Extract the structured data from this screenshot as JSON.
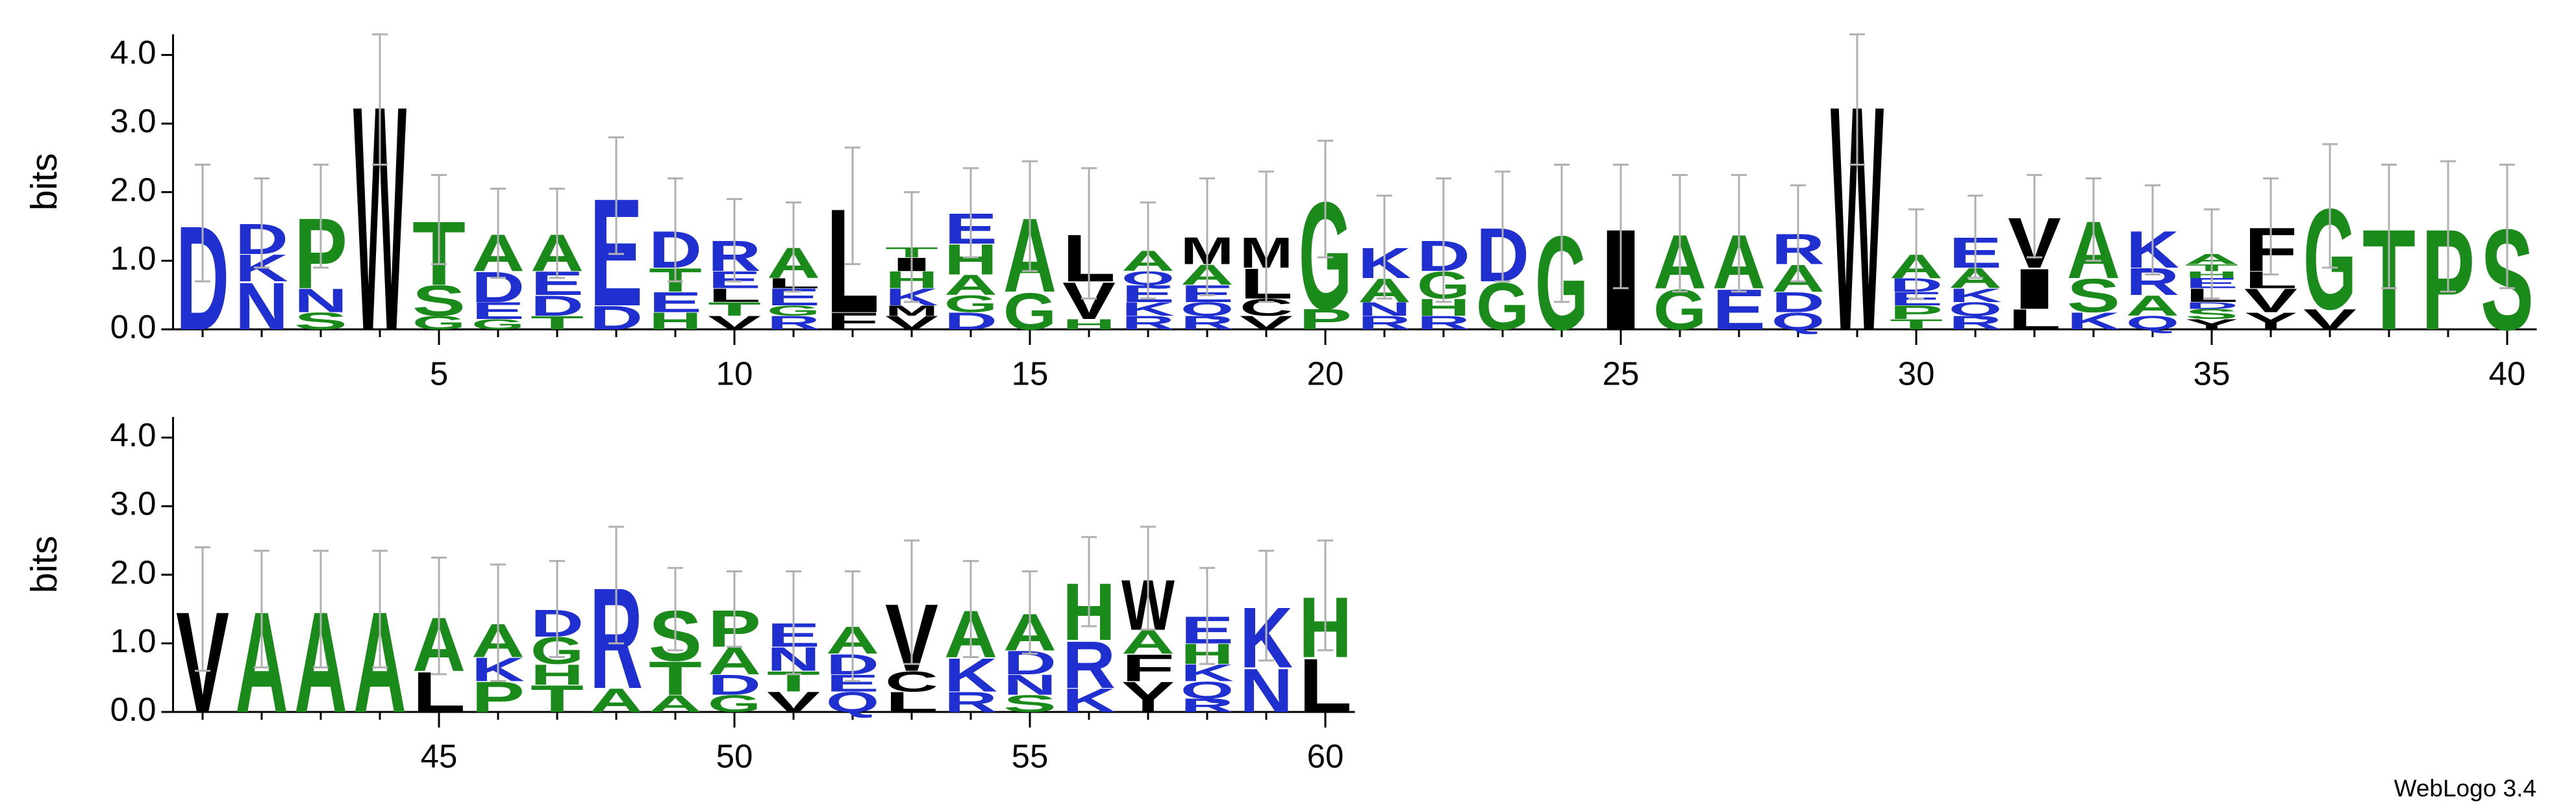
{
  "footer": "WebLogo 3.4",
  "letter_colors": {
    "A": "#1a8a1a",
    "G": "#1a8a1a",
    "S": "#1a8a1a",
    "T": "#1a8a1a",
    "P": "#1a8a1a",
    "H": "#1a8a1a",
    "D": "#1f2fd0",
    "E": "#1f2fd0",
    "K": "#1f2fd0",
    "R": "#1f2fd0",
    "N": "#1f2fd0",
    "Q": "#1f2fd0",
    "W": "#000000",
    "L": "#000000",
    "V": "#000000",
    "I": "#000000",
    "F": "#000000",
    "Y": "#000000",
    "M": "#000000",
    "C": "#000000"
  },
  "chart_data": [
    {
      "type": "logo",
      "ylabel": "bits",
      "xlim": [
        0.5,
        40.5
      ],
      "xticks": [
        5,
        10,
        15,
        20,
        25,
        30,
        35,
        40
      ],
      "ylim": [
        0,
        4.3
      ],
      "yticks": [
        {
          "value": 0,
          "label": "0.0"
        },
        {
          "value": 1,
          "label": "1.0"
        },
        {
          "value": 2,
          "label": "2.0"
        },
        {
          "value": 3,
          "label": "3.0"
        },
        {
          "value": 4,
          "label": "4.0"
        }
      ],
      "positions": [
        {
          "x": 1,
          "stack": [
            [
              "D",
              1.55
            ]
          ],
          "error": 0.85
        },
        {
          "x": 2,
          "stack": [
            [
              "N",
              0.7
            ],
            [
              "K",
              0.4
            ],
            [
              "D",
              0.45
            ]
          ],
          "error": 0.65
        },
        {
          "x": 3,
          "stack": [
            [
              "S",
              0.25
            ],
            [
              "N",
              0.35
            ],
            [
              "P",
              1.05
            ]
          ],
          "error": 0.75
        },
        {
          "x": 4,
          "stack": [
            [
              "W",
              3.35
            ]
          ],
          "error": 0.95
        },
        {
          "x": 5,
          "stack": [
            [
              "G",
              0.2
            ],
            [
              "S",
              0.45
            ],
            [
              "T",
              0.95
            ]
          ],
          "error": 0.65
        },
        {
          "x": 6,
          "stack": [
            [
              "G",
              0.15
            ],
            [
              "E",
              0.25
            ],
            [
              "D",
              0.45
            ],
            [
              "A",
              0.55
            ]
          ],
          "error": 0.65
        },
        {
          "x": 7,
          "stack": [
            [
              "T",
              0.2
            ],
            [
              "D",
              0.3
            ],
            [
              "E",
              0.35
            ],
            [
              "A",
              0.55
            ]
          ],
          "error": 0.65
        },
        {
          "x": 8,
          "stack": [
            [
              "D",
              0.35
            ],
            [
              "E",
              1.6
            ]
          ],
          "error": 0.85
        },
        {
          "x": 9,
          "stack": [
            [
              "H",
              0.25
            ],
            [
              "E",
              0.3
            ],
            [
              "T",
              0.35
            ],
            [
              "D",
              0.55
            ]
          ],
          "error": 0.75
        },
        {
          "x": 10,
          "stack": [
            [
              "V",
              0.2
            ],
            [
              "T",
              0.2
            ],
            [
              "L",
              0.2
            ],
            [
              "E",
              0.25
            ],
            [
              "R",
              0.45
            ]
          ],
          "error": 0.6
        },
        {
          "x": 11,
          "stack": [
            [
              "R",
              0.2
            ],
            [
              "G",
              0.15
            ],
            [
              "E",
              0.25
            ],
            [
              "L",
              0.15
            ],
            [
              "A",
              0.45
            ]
          ],
          "error": 0.65
        },
        {
          "x": 12,
          "stack": [
            [
              "F",
              0.25
            ],
            [
              "L",
              1.55
            ]
          ],
          "error": 0.85
        },
        {
          "x": 13,
          "stack": [
            [
              "V",
              0.2
            ],
            [
              "M",
              0.15
            ],
            [
              "K",
              0.25
            ],
            [
              "H",
              0.25
            ],
            [
              "I",
              0.2
            ],
            [
              "T",
              0.15
            ]
          ],
          "error": 0.8
        },
        {
          "x": 14,
          "stack": [
            [
              "D",
              0.25
            ],
            [
              "G",
              0.25
            ],
            [
              "A",
              0.3
            ],
            [
              "H",
              0.45
            ],
            [
              "E",
              0.45
            ]
          ],
          "error": 0.65
        },
        {
          "x": 15,
          "stack": [
            [
              "G",
              0.55
            ],
            [
              "A",
              1.1
            ]
          ],
          "error": 0.8
        },
        {
          "x": 16,
          "stack": [
            [
              "H",
              0.15
            ],
            [
              "V",
              0.55
            ],
            [
              "L",
              0.7
            ]
          ],
          "error": 0.95
        },
        {
          "x": 17,
          "stack": [
            [
              "R",
              0.2
            ],
            [
              "K",
              0.2
            ],
            [
              "E",
              0.25
            ],
            [
              "Q",
              0.2
            ],
            [
              "A",
              0.3
            ]
          ],
          "error": 0.7
        },
        {
          "x": 18,
          "stack": [
            [
              "R",
              0.2
            ],
            [
              "Q",
              0.2
            ],
            [
              "E",
              0.25
            ],
            [
              "A",
              0.3
            ],
            [
              "M",
              0.4
            ]
          ],
          "error": 0.85
        },
        {
          "x": 19,
          "stack": [
            [
              "V",
              0.2
            ],
            [
              "C",
              0.25
            ],
            [
              "L",
              0.45
            ],
            [
              "M",
              0.45
            ]
          ],
          "error": 0.95
        },
        {
          "x": 20,
          "stack": [
            [
              "P",
              0.3
            ],
            [
              "G",
              1.6
            ]
          ],
          "error": 0.85
        },
        {
          "x": 21,
          "stack": [
            [
              "R",
              0.2
            ],
            [
              "N",
              0.2
            ],
            [
              "A",
              0.35
            ],
            [
              "K",
              0.45
            ]
          ],
          "error": 0.75
        },
        {
          "x": 22,
          "stack": [
            [
              "R",
              0.2
            ],
            [
              "H",
              0.25
            ],
            [
              "G",
              0.4
            ],
            [
              "D",
              0.45
            ]
          ],
          "error": 0.9
        },
        {
          "x": 23,
          "stack": [
            [
              "G",
              0.7
            ],
            [
              "D",
              0.8
            ]
          ],
          "error": 0.8
        },
        {
          "x": 24,
          "stack": [
            [
              "G",
              1.4
            ]
          ],
          "error": 1.0
        },
        {
          "x": 25,
          "stack": [
            [
              "I",
              1.5
            ]
          ],
          "error": 0.9
        },
        {
          "x": 26,
          "stack": [
            [
              "G",
              0.6
            ],
            [
              "A",
              0.8
            ]
          ],
          "error": 0.85
        },
        {
          "x": 27,
          "stack": [
            [
              "E",
              0.6
            ],
            [
              "A",
              0.8
            ]
          ],
          "error": 0.85
        },
        {
          "x": 28,
          "stack": [
            [
              "Q",
              0.25
            ],
            [
              "D",
              0.3
            ],
            [
              "A",
              0.4
            ],
            [
              "R",
              0.45
            ]
          ],
          "error": 0.7
        },
        {
          "x": 29,
          "stack": [
            [
              "W",
              3.35
            ]
          ],
          "error": 0.95
        },
        {
          "x": 30,
          "stack": [
            [
              "T",
              0.15
            ],
            [
              "P",
              0.2
            ],
            [
              "E",
              0.2
            ],
            [
              "D",
              0.2
            ],
            [
              "A",
              0.35
            ]
          ],
          "error": 0.65
        },
        {
          "x": 31,
          "stack": [
            [
              "R",
              0.2
            ],
            [
              "Q",
              0.2
            ],
            [
              "K",
              0.2
            ],
            [
              "A",
              0.3
            ],
            [
              "E",
              0.45
            ]
          ],
          "error": 0.6
        },
        {
          "x": 32,
          "stack": [
            [
              "L",
              0.3
            ],
            [
              "I",
              0.6
            ],
            [
              "V",
              0.75
            ]
          ],
          "error": 0.6
        },
        {
          "x": 33,
          "stack": [
            [
              "K",
              0.25
            ],
            [
              "S",
              0.5
            ],
            [
              "A",
              0.85
            ]
          ],
          "error": 0.6
        },
        {
          "x": 34,
          "stack": [
            [
              "Q",
              0.2
            ],
            [
              "A",
              0.3
            ],
            [
              "R",
              0.4
            ],
            [
              "K",
              0.55
            ]
          ],
          "error": 0.65
        },
        {
          "x": 35,
          "stack": [
            [
              "Y",
              0.15
            ],
            [
              "S",
              0.15
            ],
            [
              "D",
              0.1
            ],
            [
              "L",
              0.2
            ],
            [
              "E",
              0.15
            ],
            [
              "H",
              0.1
            ],
            [
              "T",
              0.1
            ],
            [
              "A",
              0.15
            ]
          ],
          "error": 0.65
        },
        {
          "x": 36,
          "stack": [
            [
              "Y",
              0.25
            ],
            [
              "V",
              0.35
            ],
            [
              "L",
              0.25
            ],
            [
              "F",
              0.65
            ]
          ],
          "error": 0.7
        },
        {
          "x": 37,
          "stack": [
            [
              "V",
              0.3
            ],
            [
              "G",
              1.5
            ]
          ],
          "error": 0.9
        },
        {
          "x": 38,
          "stack": [
            [
              "T",
              1.5
            ]
          ],
          "error": 0.9
        },
        {
          "x": 39,
          "stack": [
            [
              "P",
              1.5
            ]
          ],
          "error": 0.95
        },
        {
          "x": 40,
          "stack": [
            [
              "S",
              1.5
            ]
          ],
          "error": 0.9
        }
      ]
    },
    {
      "type": "logo",
      "ylabel": "bits",
      "xlim": [
        40.5,
        60.5
      ],
      "xticks": [
        45,
        50,
        55,
        60
      ],
      "ylim": [
        0,
        4.3
      ],
      "yticks": [
        {
          "value": 0,
          "label": "0.0"
        },
        {
          "value": 1,
          "label": "1.0"
        },
        {
          "value": 2,
          "label": "2.0"
        },
        {
          "value": 3,
          "label": "3.0"
        },
        {
          "value": 4,
          "label": "4.0"
        }
      ],
      "positions": [
        {
          "x": 41,
          "stack": [
            [
              "V",
              1.5
            ]
          ],
          "error": 0.9
        },
        {
          "x": 42,
          "stack": [
            [
              "A",
              1.5
            ]
          ],
          "error": 0.85
        },
        {
          "x": 43,
          "stack": [
            [
              "A",
              1.5
            ]
          ],
          "error": 0.85
        },
        {
          "x": 44,
          "stack": [
            [
              "A",
              1.5
            ]
          ],
          "error": 0.85
        },
        {
          "x": 45,
          "stack": [
            [
              "L",
              0.6
            ],
            [
              "A",
              0.8
            ]
          ],
          "error": 0.85
        },
        {
          "x": 46,
          "stack": [
            [
              "P",
              0.45
            ],
            [
              "K",
              0.35
            ],
            [
              "A",
              0.5
            ]
          ],
          "error": 0.85
        },
        {
          "x": 47,
          "stack": [
            [
              "T",
              0.4
            ],
            [
              "H",
              0.3
            ],
            [
              "G",
              0.4
            ],
            [
              "D",
              0.4
            ]
          ],
          "error": 0.7
        },
        {
          "x": 48,
          "stack": [
            [
              "A",
              0.35
            ],
            [
              "R",
              1.5
            ]
          ],
          "error": 0.85
        },
        {
          "x": 49,
          "stack": [
            [
              "A",
              0.25
            ],
            [
              "T",
              0.5
            ],
            [
              "S",
              0.75
            ]
          ],
          "error": 0.6
        },
        {
          "x": 50,
          "stack": [
            [
              "G",
              0.25
            ],
            [
              "D",
              0.3
            ],
            [
              "A",
              0.4
            ],
            [
              "P",
              0.55
            ]
          ],
          "error": 0.55
        },
        {
          "x": 51,
          "stack": [
            [
              "V",
              0.3
            ],
            [
              "T",
              0.3
            ],
            [
              "N",
              0.35
            ],
            [
              "E",
              0.35
            ]
          ],
          "error": 0.75
        },
        {
          "x": 52,
          "stack": [
            [
              "Q",
              0.3
            ],
            [
              "E",
              0.25
            ],
            [
              "D",
              0.3
            ],
            [
              "A",
              0.4
            ]
          ],
          "error": 0.8
        },
        {
          "x": 53,
          "stack": [
            [
              "L",
              0.3
            ],
            [
              "C",
              0.3
            ],
            [
              "V",
              1.0
            ]
          ],
          "error": 0.9
        },
        {
          "x": 54,
          "stack": [
            [
              "R",
              0.3
            ],
            [
              "K",
              0.5
            ],
            [
              "A",
              0.7
            ]
          ],
          "error": 0.7
        },
        {
          "x": 55,
          "stack": [
            [
              "S",
              0.25
            ],
            [
              "N",
              0.3
            ],
            [
              "D",
              0.35
            ],
            [
              "A",
              0.55
            ]
          ],
          "error": 0.6
        },
        {
          "x": 56,
          "stack": [
            [
              "K",
              0.35
            ],
            [
              "R",
              0.7
            ],
            [
              "H",
              0.85
            ]
          ],
          "error": 0.65
        },
        {
          "x": 57,
          "stack": [
            [
              "Y",
              0.45
            ],
            [
              "F",
              0.4
            ],
            [
              "A",
              0.35
            ],
            [
              "W",
              0.75
            ]
          ],
          "error": 0.75
        },
        {
          "x": 58,
          "stack": [
            [
              "R",
              0.2
            ],
            [
              "Q",
              0.25
            ],
            [
              "K",
              0.25
            ],
            [
              "H",
              0.3
            ],
            [
              "E",
              0.4
            ]
          ],
          "error": 0.7
        },
        {
          "x": 59,
          "stack": [
            [
              "N",
              0.65
            ],
            [
              "K",
              0.9
            ]
          ],
          "error": 0.8
        },
        {
          "x": 60,
          "stack": [
            [
              "L",
              0.8
            ],
            [
              "H",
              0.9
            ]
          ],
          "error": 0.8
        }
      ]
    }
  ]
}
